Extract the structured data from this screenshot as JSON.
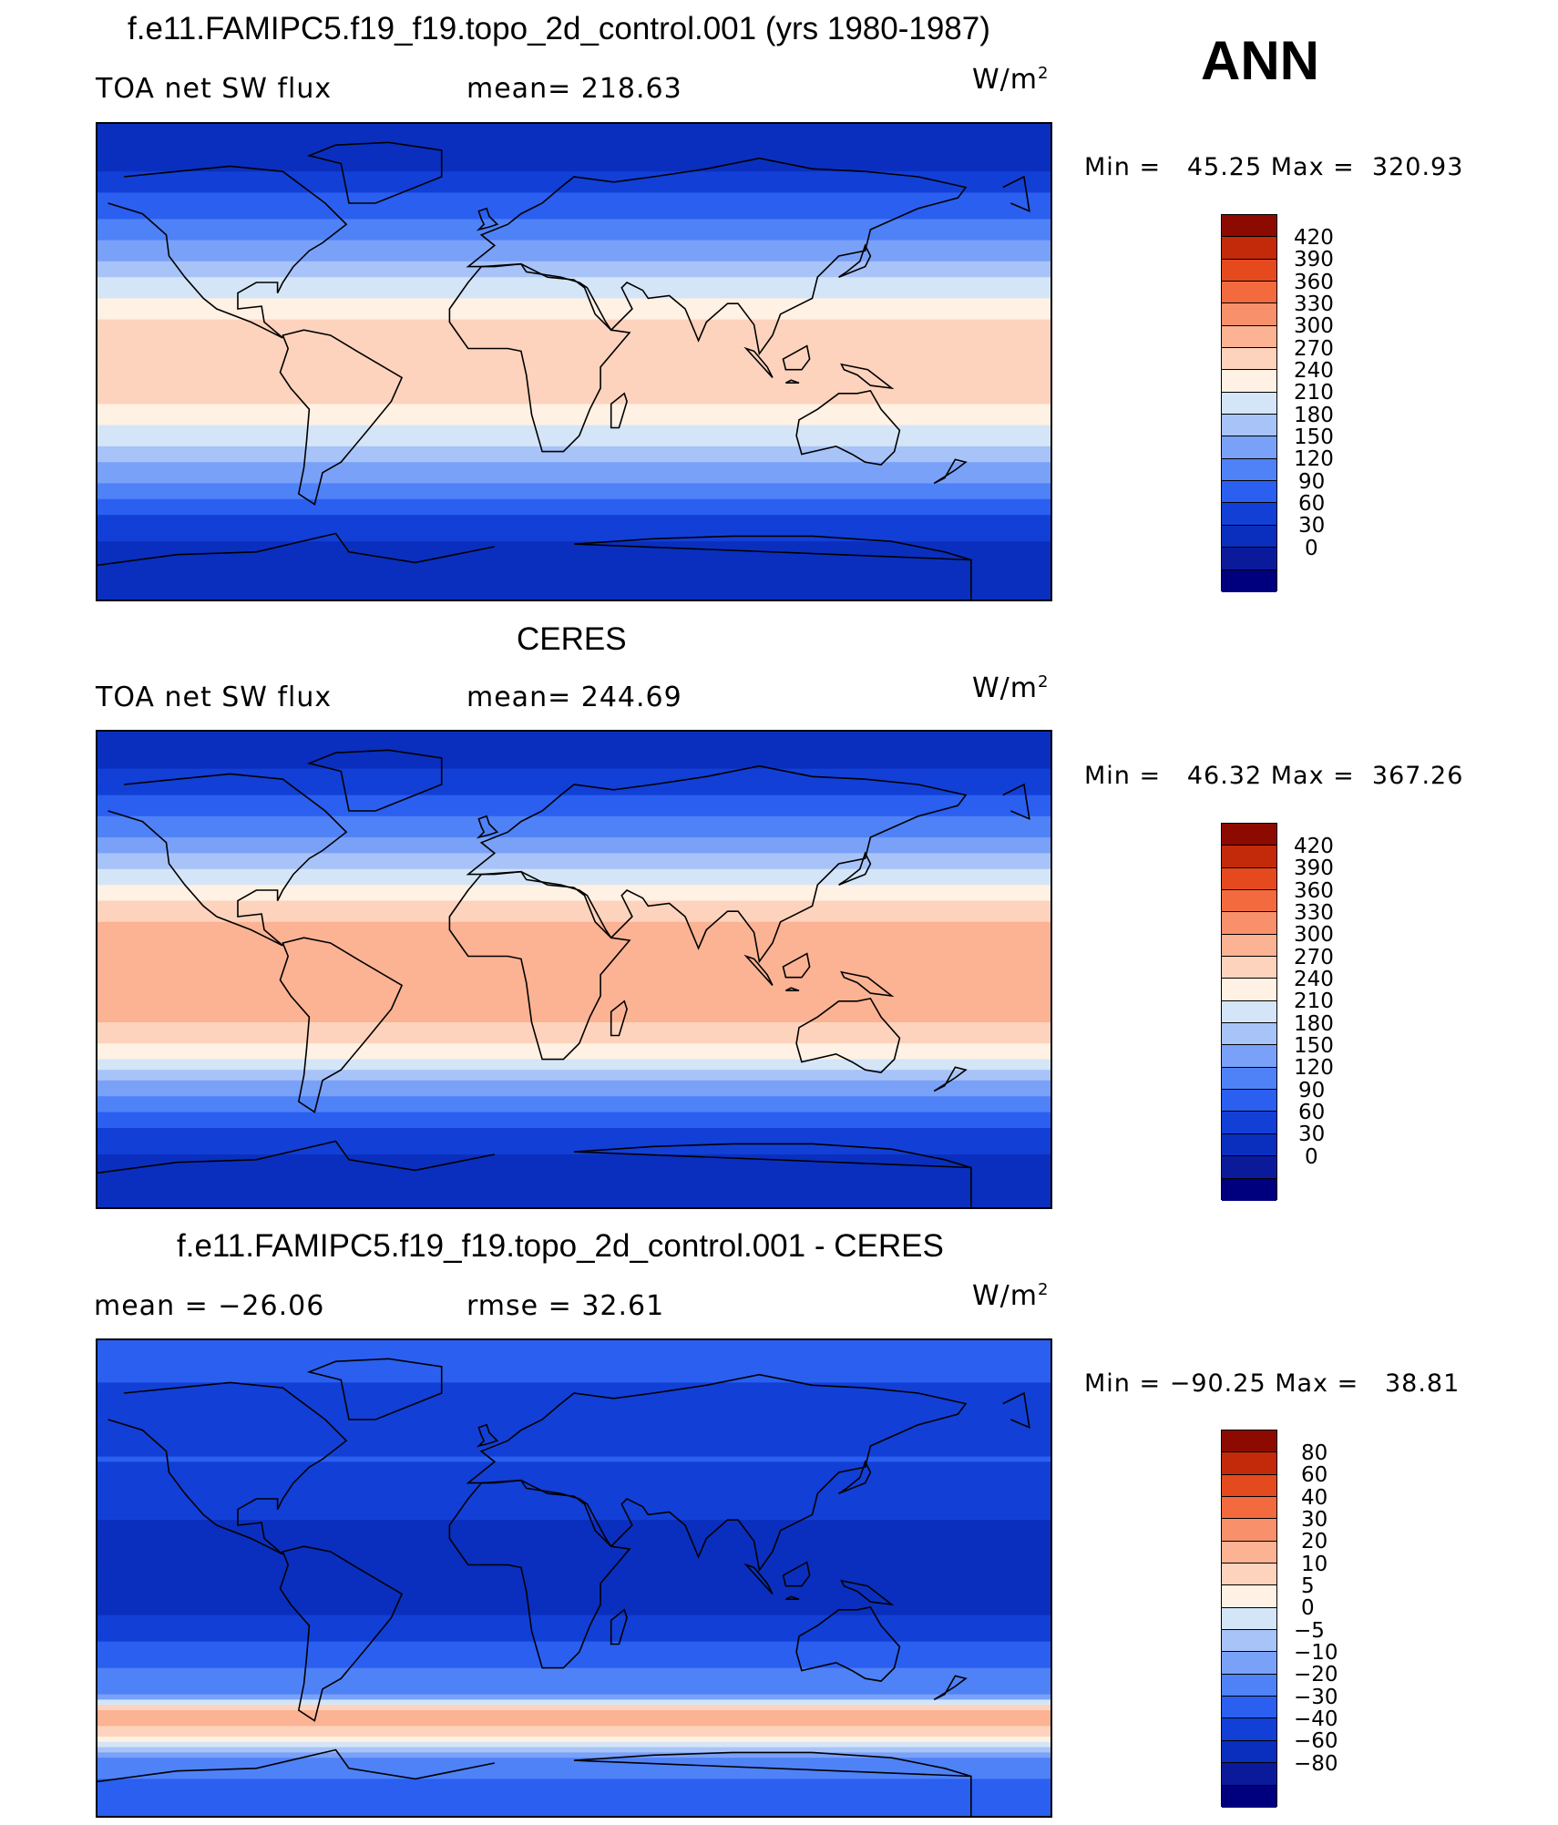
{
  "season": "ANN",
  "units_base": "W/m",
  "units_sup": "2",
  "palette_abs": [
    "#00007f",
    "#0a1a9b",
    "#0a2fbe",
    "#123fd6",
    "#2a5ff0",
    "#4f82f7",
    "#7aa1f8",
    "#a8c3f7",
    "#d4e5f7",
    "#fff1e3",
    "#fdd3bd",
    "#fbb394",
    "#f8906b",
    "#f36a3f",
    "#e54a1e",
    "#c22a0a",
    "#8c0a00"
  ],
  "palette_diff": [
    "#00007f",
    "#0a1a9b",
    "#0a2fbe",
    "#123fd6",
    "#2a5ff0",
    "#4f82f7",
    "#7aa1f8",
    "#a8c3f7",
    "#d4e5f7",
    "#fff1e3",
    "#fdd3bd",
    "#fbb394",
    "#f8906b",
    "#f36a3f",
    "#e54a1e",
    "#c22a0a",
    "#8c0a00"
  ],
  "panels": [
    {
      "title": "f.e11.FAMIPC5.f19_f19.topo_2d_control.001 (yrs 1980-1987)",
      "left_label": "TOA net SW flux",
      "stat_label": "mean= 218.63",
      "minmax": "Min =   45.25 Max =  320.93"
    },
    {
      "title": "CERES",
      "left_label": "TOA net SW flux",
      "stat_label": "mean= 244.69",
      "minmax": "Min =   46.32 Max =  367.26"
    },
    {
      "title": "f.e11.FAMIPC5.f19_f19.topo_2d_control.001 - CERES",
      "left_label": "mean = −26.06",
      "stat_label": "rmse =   32.61",
      "minmax": "Min = −90.25 Max =   38.81"
    }
  ],
  "chart_data": [
    {
      "type": "heatmap",
      "title": "f.e11.FAMIPC5.f19_f19.topo_2d_control.001 (yrs 1980-1987)",
      "variable": "TOA net SW flux",
      "units": "W/m2",
      "mean": 218.63,
      "min": 45.25,
      "max": 320.93,
      "levels": [
        0,
        30,
        60,
        90,
        120,
        150,
        180,
        210,
        240,
        270,
        300,
        330,
        360,
        390,
        420
      ],
      "level_labels": [
        "420",
        "390",
        "360",
        "330",
        "300",
        "270",
        "240",
        "210",
        "180",
        "150",
        "120",
        "90",
        "60",
        "30",
        "0"
      ],
      "zonal_profile": [
        [
          90,
          30
        ],
        [
          75,
          50
        ],
        [
          60,
          100
        ],
        [
          45,
          150
        ],
        [
          30,
          220
        ],
        [
          15,
          270
        ],
        [
          0,
          280
        ],
        [
          -15,
          275
        ],
        [
          -30,
          220
        ],
        [
          -45,
          150
        ],
        [
          -60,
          80
        ],
        [
          -75,
          40
        ],
        [
          -90,
          30
        ]
      ]
    },
    {
      "type": "heatmap",
      "title": "CERES",
      "variable": "TOA net SW flux",
      "units": "W/m2",
      "mean": 244.69,
      "min": 46.32,
      "max": 367.26,
      "levels": [
        0,
        30,
        60,
        90,
        120,
        150,
        180,
        210,
        240,
        270,
        300,
        330,
        360,
        390,
        420
      ],
      "level_labels": [
        "420",
        "390",
        "360",
        "330",
        "300",
        "270",
        "240",
        "210",
        "180",
        "150",
        "120",
        "90",
        "60",
        "30",
        "0"
      ],
      "zonal_profile": [
        [
          90,
          40
        ],
        [
          75,
          60
        ],
        [
          60,
          110
        ],
        [
          45,
          170
        ],
        [
          30,
          250
        ],
        [
          15,
          310
        ],
        [
          0,
          330
        ],
        [
          -15,
          320
        ],
        [
          -30,
          260
        ],
        [
          -45,
          160
        ],
        [
          -60,
          90
        ],
        [
          -75,
          45
        ],
        [
          -90,
          40
        ]
      ]
    },
    {
      "type": "heatmap",
      "title": "f.e11.FAMIPC5.f19_f19.topo_2d_control.001 - CERES",
      "units": "W/m2",
      "mean": -26.06,
      "rmse": 32.61,
      "min": -90.25,
      "max": 38.81,
      "levels": [
        -80,
        -60,
        -40,
        -30,
        -20,
        -10,
        -5,
        0,
        5,
        10,
        20,
        30,
        40,
        60,
        80
      ],
      "level_labels": [
        "80",
        "60",
        "40",
        "30",
        "20",
        "10",
        "5",
        "0",
        "−5",
        "−10",
        "−20",
        "−30",
        "−40",
        "−60",
        "−80"
      ],
      "zonal_profile": [
        [
          90,
          -20
        ],
        [
          75,
          -30
        ],
        [
          60,
          -35
        ],
        [
          45,
          -30
        ],
        [
          30,
          -35
        ],
        [
          15,
          -45
        ],
        [
          0,
          -45
        ],
        [
          -15,
          -40
        ],
        [
          -30,
          -25
        ],
        [
          -45,
          -10
        ],
        [
          -50,
          20
        ],
        [
          -55,
          25
        ],
        [
          -65,
          -5
        ],
        [
          -75,
          -20
        ],
        [
          -90,
          -25
        ]
      ]
    }
  ]
}
